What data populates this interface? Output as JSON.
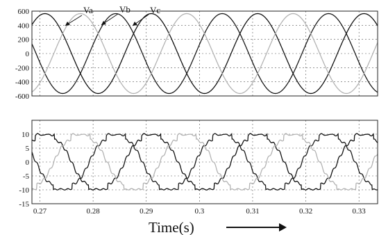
{
  "chart_data": [
    {
      "type": "line",
      "xlim": [
        0.2685,
        0.3335
      ],
      "ylim": [
        -600,
        600
      ],
      "yticks": [
        600,
        400,
        200,
        0,
        -200,
        -400,
        -600
      ],
      "xticks": [
        0.27,
        0.28,
        0.29,
        0.3,
        0.31,
        0.32,
        0.33
      ],
      "grid": true,
      "series": [
        {
          "name": "Va",
          "color": "#1a1a1a",
          "amplitude": 565,
          "frequency_hz": 50,
          "phase_deg": 13
        },
        {
          "name": "Vb",
          "color": "#111111",
          "amplitude": 565,
          "frequency_hz": 50,
          "phase_deg": 253
        },
        {
          "name": "Vc",
          "color": "#b3b3b3",
          "amplitude": 565,
          "frequency_hz": 50,
          "phase_deg": 133
        }
      ],
      "annotations": [
        "Va",
        "Vb",
        "Vc"
      ]
    },
    {
      "type": "line",
      "xlim": [
        0.2685,
        0.3335
      ],
      "ylim": [
        -15,
        15
      ],
      "yticks": [
        10,
        5,
        0,
        -5,
        -10,
        -15
      ],
      "xticks": [
        0.27,
        0.28,
        0.29,
        0.3,
        0.31,
        0.32,
        0.33
      ],
      "xticklabels": [
        "0.27",
        "0.28",
        "0.29",
        "0.3",
        "0.31",
        "0.32",
        "0.33"
      ],
      "grid": true,
      "series": [
        {
          "color": "#1a1a1a",
          "amplitude": 10,
          "frequency_hz": 50,
          "phase_deg": 13
        },
        {
          "color": "#111111",
          "amplitude": 10,
          "frequency_hz": 50,
          "phase_deg": 253
        },
        {
          "color": "#b3b3b3",
          "amplitude": 10,
          "frequency_hz": 50,
          "phase_deg": 133
        }
      ],
      "xlabel": "Time(s)"
    }
  ]
}
